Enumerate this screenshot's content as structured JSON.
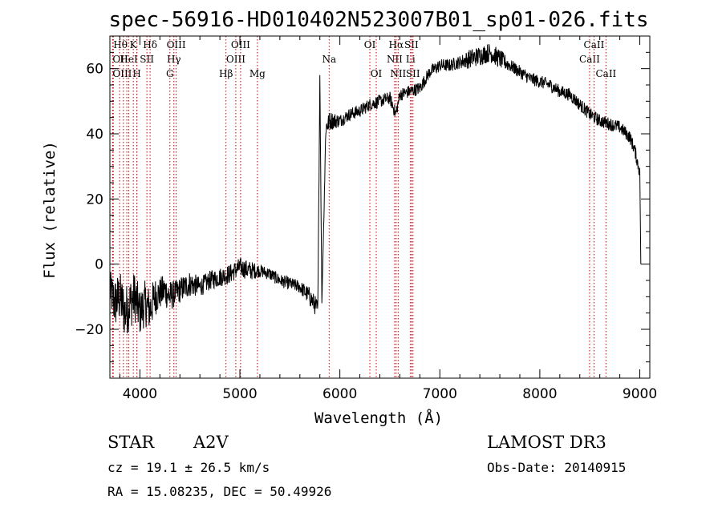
{
  "chart_data": {
    "type": "line",
    "title": "spec-56916-HD010402N523007B01_sp01-026.fits",
    "xlabel": "Wavelength (Å)",
    "ylabel": "Flux (relative)",
    "xlim": [
      3700,
      9100
    ],
    "ylim": [
      -35,
      70
    ],
    "xticks": [
      4000,
      5000,
      6000,
      7000,
      8000,
      9000
    ],
    "xtick_labels": [
      "4000",
      "5000",
      "6000",
      "7000",
      "8000",
      "9000"
    ],
    "yticks": [
      -20,
      0,
      20,
      40,
      60
    ],
    "ytick_labels": [
      "−20",
      "0",
      "20",
      "40",
      "60"
    ],
    "grid": false,
    "series": [
      {
        "color": "#000000",
        "x": [
          3700,
          3750,
          3800,
          3850,
          3900,
          3950,
          4000,
          4050,
          4100,
          4150,
          4200,
          4250,
          4300,
          4350,
          4400,
          4450,
          4500,
          4600,
          4700,
          4800,
          4900,
          5000,
          5100,
          5200,
          5300,
          5400,
          5500,
          5600,
          5700,
          5780,
          5800,
          5820,
          5840,
          5860,
          5880,
          5900,
          6000,
          6100,
          6200,
          6300,
          6400,
          6500,
          6560,
          6600,
          6700,
          6800,
          6900,
          7000,
          7100,
          7200,
          7300,
          7400,
          7500,
          7600,
          7700,
          7800,
          7900,
          8000,
          8100,
          8200,
          8300,
          8400,
          8500,
          8600,
          8700,
          8800,
          8900,
          8950,
          9000,
          9010
        ],
        "y": [
          -8,
          -12,
          -10,
          -15,
          -12,
          -10,
          -15,
          -12,
          -14,
          -10,
          -9,
          -8,
          -10,
          -9,
          -8,
          -7,
          -6,
          -7,
          -5,
          -4,
          -3,
          -1,
          -2,
          -2,
          -3,
          -5,
          -6,
          -7,
          -10,
          -14,
          58,
          -12,
          15,
          42,
          43,
          44,
          44,
          46,
          47,
          49,
          50,
          51,
          46,
          52,
          53,
          54,
          59,
          61,
          61,
          62,
          63,
          64,
          65,
          63,
          61,
          59,
          57,
          56,
          55,
          53,
          52,
          49,
          46,
          44,
          43,
          42,
          39,
          35,
          28,
          0
        ],
        "noise": [
          6,
          8,
          8,
          8,
          8,
          8,
          7,
          7,
          7,
          6,
          5,
          5,
          5,
          4,
          4,
          4,
          4,
          3,
          3,
          3,
          3,
          3,
          3,
          2,
          2,
          2,
          2,
          2,
          3,
          3,
          0,
          0,
          2,
          3,
          3,
          3,
          2,
          2,
          2,
          2,
          2,
          2,
          2,
          2,
          2,
          2,
          2,
          2,
          2,
          2,
          3,
          3,
          3,
          3,
          2,
          2,
          2,
          2,
          2,
          2,
          2,
          2,
          2,
          2,
          2,
          2,
          2,
          2,
          2,
          0
        ]
      }
    ],
    "line_marks": {
      "color": "#cc0000",
      "style": "dotted",
      "lines": [
        {
          "x": 3734,
          "label": "Hθ",
          "row": 0,
          "anchor": "start"
        },
        {
          "x": 3727,
          "label": "OII",
          "row": 1,
          "anchor": "start"
        },
        {
          "x": 3727,
          "label": "OIII",
          "row": 2,
          "anchor": "start"
        },
        {
          "x": 3797,
          "label": "",
          "row": 0,
          "anchor": "start"
        },
        {
          "x": 3835,
          "label": "",
          "row": 0,
          "anchor": "start"
        },
        {
          "x": 3869,
          "label": "",
          "row": 0,
          "anchor": "start"
        },
        {
          "x": 3889,
          "label": "HeI",
          "row": 1,
          "anchor": "middle"
        },
        {
          "x": 3934,
          "label": "K",
          "row": 0,
          "anchor": "middle"
        },
        {
          "x": 3970,
          "label": "H",
          "row": 2,
          "anchor": "middle"
        },
        {
          "x": 3970,
          "label": "",
          "row": 0,
          "anchor": "middle"
        },
        {
          "x": 4070,
          "label": "SII",
          "row": 1,
          "anchor": "middle"
        },
        {
          "x": 4102,
          "label": "Hδ",
          "row": 0,
          "anchor": "middle"
        },
        {
          "x": 4340,
          "label": "Hγ",
          "row": 1,
          "anchor": "middle"
        },
        {
          "x": 4300,
          "label": "G",
          "row": 2,
          "anchor": "middle"
        },
        {
          "x": 4363,
          "label": "OIII",
          "row": 0,
          "anchor": "middle"
        },
        {
          "x": 4861,
          "label": "Hβ",
          "row": 2,
          "anchor": "middle"
        },
        {
          "x": 4959,
          "label": "OIII",
          "row": 1,
          "anchor": "middle"
        },
        {
          "x": 5007,
          "label": "OIII",
          "row": 0,
          "anchor": "middle"
        },
        {
          "x": 5175,
          "label": "Mg",
          "row": 2,
          "anchor": "middle"
        },
        {
          "x": 5893,
          "label": "Na",
          "row": 1,
          "anchor": "middle"
        },
        {
          "x": 6300,
          "label": "OI",
          "row": 0,
          "anchor": "middle"
        },
        {
          "x": 6364,
          "label": "OI",
          "row": 2,
          "anchor": "middle"
        },
        {
          "x": 6548,
          "label": "NII",
          "row": 1,
          "anchor": "middle"
        },
        {
          "x": 6563,
          "label": "Hα",
          "row": 0,
          "anchor": "middle"
        },
        {
          "x": 6583,
          "label": "NII",
          "row": 2,
          "anchor": "middle"
        },
        {
          "x": 6707,
          "label": "Li",
          "row": 1,
          "anchor": "middle"
        },
        {
          "x": 6716,
          "label": "SII",
          "row": 0,
          "anchor": "middle"
        },
        {
          "x": 6731,
          "label": "SII",
          "row": 2,
          "anchor": "middle"
        },
        {
          "x": 8498,
          "label": "CaII",
          "row": 1,
          "anchor": "middle"
        },
        {
          "x": 8542,
          "label": "CaII",
          "row": 0,
          "anchor": "middle"
        },
        {
          "x": 8662,
          "label": "CaII",
          "row": 2,
          "anchor": "middle"
        }
      ]
    }
  },
  "info": {
    "object_class": "STAR",
    "subclass": "A2V",
    "survey": "LAMOST DR3",
    "cz": "cz = 19.1 ± 26.5 km/s",
    "obs_date": "Obs-Date: 20140915",
    "coords": "RA =  15.08235, DEC =  50.49926"
  }
}
